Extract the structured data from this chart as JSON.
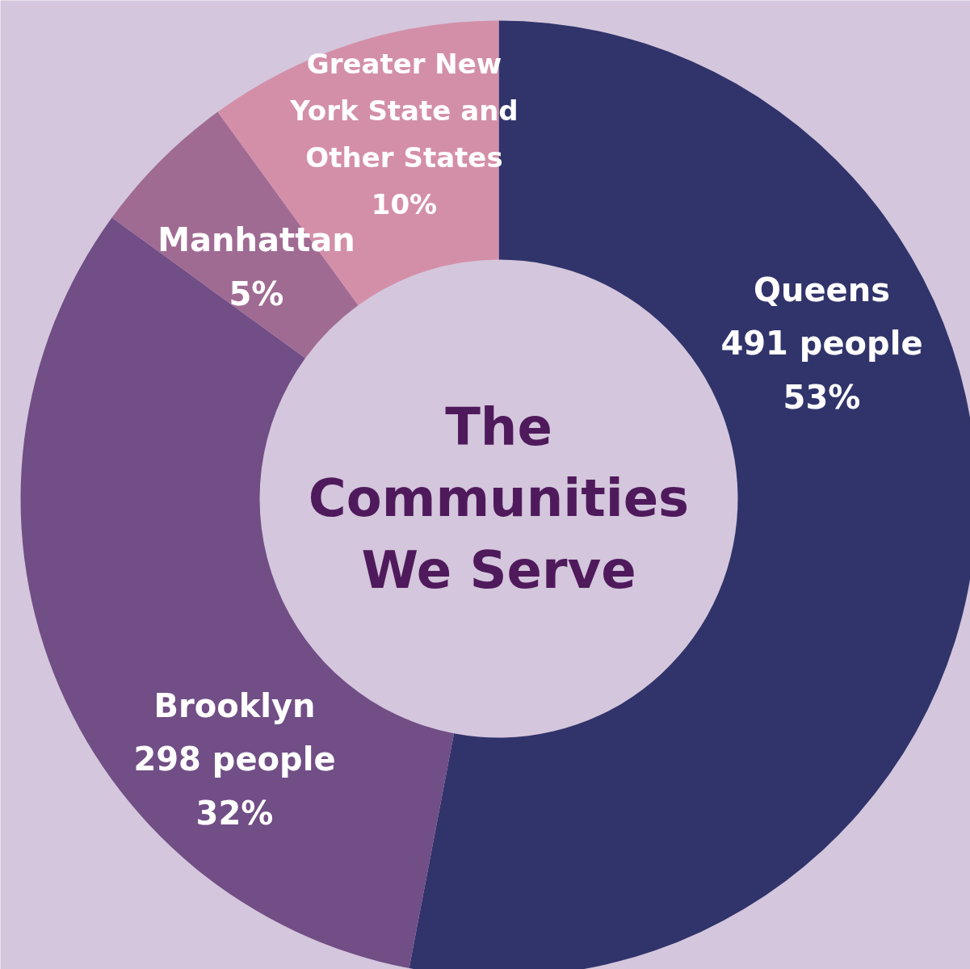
{
  "chart_data": {
    "type": "donut",
    "title": "The Communities We Serve",
    "categories": [
      "Queens",
      "Brooklyn",
      "Manhattan",
      "Greater New York State and Other States"
    ],
    "values": [
      53,
      32,
      5,
      10
    ],
    "colors": [
      "#31346b",
      "#714e86",
      "#a06b93",
      "#d48fa8"
    ],
    "value_labels": [
      "491 people\n53%",
      "298 people\n32%",
      "5%",
      "10%"
    ],
    "legend": false
  }
}
